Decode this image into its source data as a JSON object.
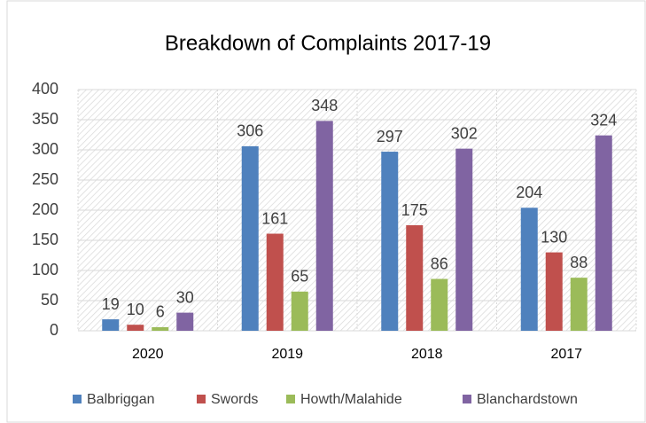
{
  "chart_data": {
    "type": "bar",
    "title": "Breakdown of Complaints 2017-19",
    "categories": [
      "2020",
      "2019",
      "2018",
      "2017"
    ],
    "series": [
      {
        "name": "Balbriggan",
        "color": "#4f81bd",
        "values": [
          19,
          306,
          297,
          204
        ]
      },
      {
        "name": "Swords",
        "color": "#c0504d",
        "values": [
          10,
          161,
          175,
          130
        ]
      },
      {
        "name": "Howth/Malahide",
        "color": "#9bbb59",
        "values": [
          6,
          65,
          86,
          88
        ]
      },
      {
        "name": "Blanchardstown",
        "color": "#8064a2",
        "values": [
          30,
          348,
          302,
          324
        ]
      }
    ],
    "ylim": [
      0,
      400
    ],
    "yticks": [
      0,
      50,
      100,
      150,
      200,
      250,
      300,
      350,
      400
    ],
    "grid": true,
    "legend": "bottom"
  }
}
